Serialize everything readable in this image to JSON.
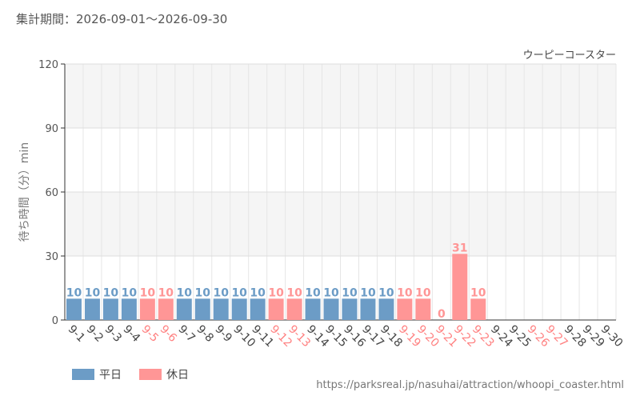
{
  "header": {
    "period": "集計期間：2026-09-01～2026-09-30"
  },
  "footer": {
    "source": "https://parksreal.jp/nasuhai/attraction/whoopi_coaster.html"
  },
  "legend": {
    "weekday": "平日",
    "holiday": "休日"
  },
  "colors": {
    "weekday": "#6c9cc6",
    "holiday": "#ff9696"
  },
  "chart_data": {
    "type": "bar",
    "title": "ウーピーコースター",
    "ylabel": "待ち時間（分）min",
    "xlabel": "",
    "ylim": [
      0,
      120
    ],
    "yticks": [
      0,
      30,
      60,
      90,
      120
    ],
    "grid": true,
    "legend_position": "bottom-left",
    "categories": [
      "9-1",
      "9-2",
      "9-3",
      "9-4",
      "9-5",
      "9-6",
      "9-7",
      "9-8",
      "9-9",
      "9-10",
      "9-11",
      "9-12",
      "9-13",
      "9-14",
      "9-15",
      "9-16",
      "9-17",
      "9-18",
      "9-19",
      "9-20",
      "9-21",
      "9-22",
      "9-23",
      "9-24",
      "9-25",
      "9-26",
      "9-27",
      "9-28",
      "9-29",
      "9-30"
    ],
    "values": [
      10,
      10,
      10,
      10,
      10,
      10,
      10,
      10,
      10,
      10,
      10,
      10,
      10,
      10,
      10,
      10,
      10,
      10,
      10,
      10,
      0,
      31,
      10,
      null,
      null,
      null,
      null,
      null,
      null,
      null
    ],
    "day_type": [
      "weekday",
      "weekday",
      "weekday",
      "weekday",
      "holiday",
      "holiday",
      "weekday",
      "weekday",
      "weekday",
      "weekday",
      "weekday",
      "holiday",
      "holiday",
      "weekday",
      "weekday",
      "weekday",
      "weekday",
      "weekday",
      "holiday",
      "holiday",
      "holiday",
      "holiday",
      "holiday",
      "weekday",
      "weekday",
      "holiday",
      "holiday",
      "weekday",
      "weekday",
      "weekday"
    ]
  }
}
